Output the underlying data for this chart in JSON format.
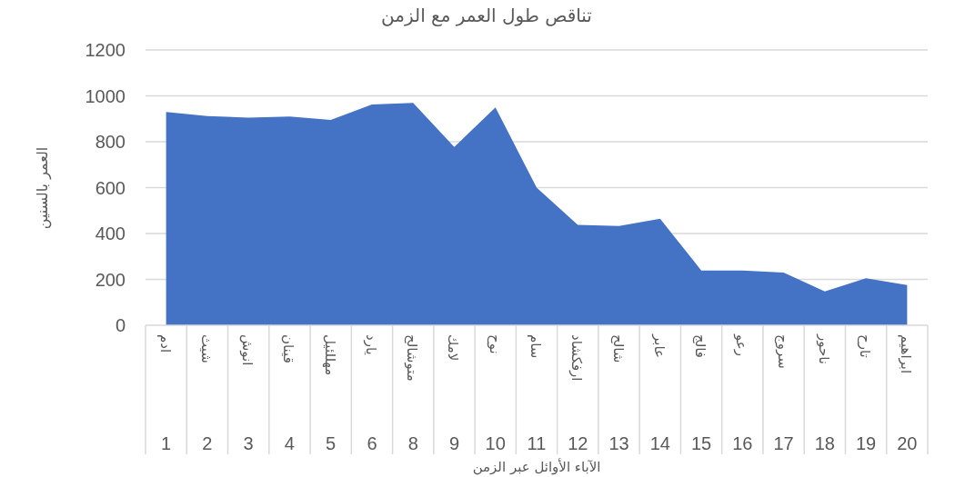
{
  "chart_data": {
    "type": "area",
    "title": "تناقص طول العمر مع الزمن",
    "xlabel": "الآباء الأوائل عبر الزمن",
    "ylabel": "العمر بالسنين",
    "categories": [
      "1",
      "2",
      "3",
      "4",
      "5",
      "6",
      "8",
      "9",
      "10",
      "11",
      "12",
      "13",
      "14",
      "15",
      "16",
      "17",
      "18",
      "19",
      "20"
    ],
    "values": [
      930,
      912,
      905,
      910,
      895,
      962,
      969,
      777,
      950,
      600,
      438,
      433,
      464,
      239,
      239,
      230,
      148,
      205,
      175
    ],
    "color": "#4472c4",
    "ylim": [
      0,
      1200
    ],
    "yticks": [
      0,
      200,
      400,
      600,
      800,
      1000,
      1200
    ],
    "grid": "y",
    "annotations": [
      "ادم",
      "شيث",
      "انوش",
      "قينان",
      "مهللئيل",
      "يارد",
      "متوشالح",
      "لامك",
      "نوح",
      "سام",
      "ارفكشاد",
      "شالح",
      "عابر",
      "فالج",
      "رعو",
      "سروج",
      "ناحور",
      "تارح",
      "ابراهيم"
    ]
  }
}
